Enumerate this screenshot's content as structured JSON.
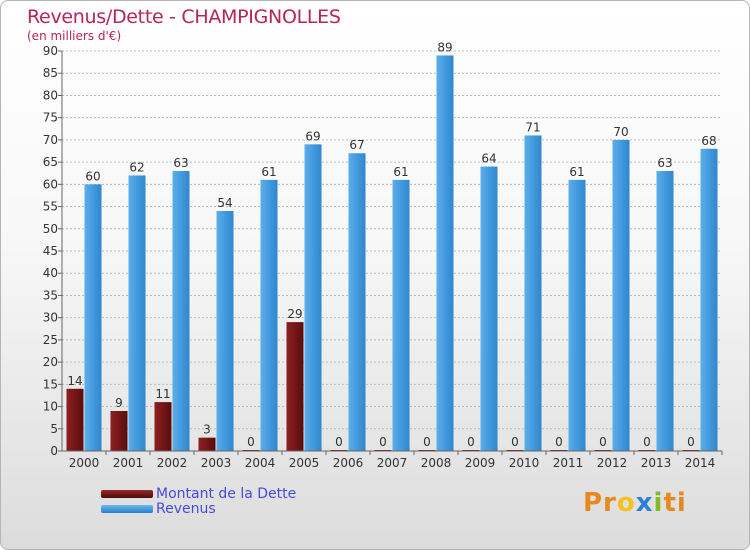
{
  "title": "Revenus/Dette - CHAMPIGNOLLES",
  "subtitle": "(en milliers d'€)",
  "legend": {
    "dette_label": "Montant de la Dette",
    "revenus_label": "Revenus"
  },
  "logo": {
    "parts": [
      "Pr",
      "o",
      "x",
      "i",
      "ti"
    ],
    "colors": [
      "#e8891e",
      "#f3c21b",
      "#2f7fd4",
      "#84b929",
      "#e8891e"
    ]
  },
  "colors": {
    "dette": "#7a1414",
    "revenus": "#3d95dc",
    "axis": "#666666",
    "grid": "#bbbbbb",
    "text": "#333333"
  },
  "chart_data": {
    "type": "bar",
    "title": "Revenus/Dette - CHAMPIGNOLLES",
    "ylabel": "(en milliers d'€)",
    "xlabel": "",
    "ylim": [
      0,
      90
    ],
    "yticks": [
      0,
      5,
      10,
      15,
      20,
      25,
      30,
      35,
      40,
      45,
      50,
      55,
      60,
      65,
      70,
      75,
      80,
      85,
      90
    ],
    "categories": [
      "2000",
      "2001",
      "2002",
      "2003",
      "2004",
      "2005",
      "2006",
      "2007",
      "2008",
      "2009",
      "2010",
      "2011",
      "2012",
      "2013",
      "2014"
    ],
    "series": [
      {
        "name": "Montant de la Dette",
        "values": [
          14,
          9,
          11,
          3,
          0,
          29,
          0,
          0,
          0,
          0,
          0,
          0,
          0,
          0,
          0
        ]
      },
      {
        "name": "Revenus",
        "values": [
          60,
          62,
          63,
          54,
          61,
          69,
          67,
          61,
          89,
          64,
          71,
          61,
          70,
          63,
          68
        ]
      }
    ],
    "grid": true,
    "legend_position": "bottom-left"
  }
}
